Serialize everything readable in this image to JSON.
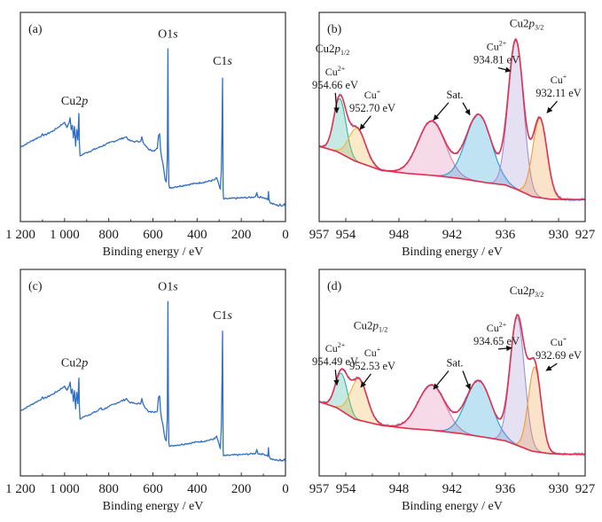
{
  "figure": {
    "colors": {
      "survey_line": "#2e6fc4",
      "envelope": "#e0304f",
      "background_line": "#e0304f",
      "raw_data": "#5b7fd6",
      "cu2_p12": "#2bb59a",
      "cu1_p12": "#f0b43c",
      "sat1": "#e07aa8",
      "sat2": "#1e9ad6",
      "cu2_p32": "#a38fd0",
      "cu1_p32": "#f09a3c",
      "axis": "#333333",
      "arrow": "#111111"
    }
  },
  "chart_data": [
    {
      "id": "a",
      "panel_label": "(a)",
      "type": "line",
      "title": "",
      "xlabel": "Binding energy / eV",
      "ylabel": "",
      "xlim": [
        1200,
        0
      ],
      "ylim": [
        0,
        100
      ],
      "x_reversed": true,
      "grid": false,
      "xticks": [
        1200,
        1000,
        800,
        600,
        400,
        200,
        0
      ],
      "xtick_labels": [
        "1 200",
        "1 000",
        "800",
        "600",
        "400",
        "200",
        "0"
      ],
      "minor_xticks": [
        1100,
        900,
        700,
        500,
        300,
        100
      ],
      "series": [
        {
          "name": "Survey",
          "x": [
            1200,
            1150,
            1105,
            1100,
            1095,
            1050,
            1005,
            1000,
            990,
            980,
            975,
            970,
            965,
            960,
            955,
            950,
            945,
            940,
            937,
            935,
            933,
            930,
            920,
            900,
            850,
            800,
            760,
            725,
            720,
            710,
            700,
            680,
            655,
            650,
            645,
            640,
            620,
            600,
            590,
            580,
            575,
            570,
            565,
            560,
            555,
            550,
            545,
            540,
            535,
            532,
            530,
            528,
            525,
            500,
            450,
            400,
            350,
            320,
            312,
            305,
            300,
            295,
            290,
            287,
            285,
            283,
            282,
            280,
            250,
            200,
            150,
            135,
            130,
            125,
            100,
            85,
            80,
            77,
            75,
            70,
            50,
            30,
            25,
            20,
            10,
            5,
            0
          ],
          "y": [
            35.6,
            38.5,
            41,
            42,
            41,
            43.5,
            47,
            47.5,
            45,
            47,
            49.6,
            44,
            46,
            40,
            45.5,
            36,
            44,
            39,
            47,
            51.7,
            38,
            31.4,
            32,
            33,
            35.2,
            37.5,
            39,
            40.3,
            40.5,
            39,
            38.5,
            38.2,
            38.5,
            40.5,
            38,
            37,
            34.5,
            34,
            34.2,
            35,
            41,
            42,
            34,
            30,
            28,
            24,
            20,
            19,
            30,
            82.6,
            40,
            18,
            16,
            16.6,
            17.5,
            18.3,
            19.2,
            20,
            21,
            19,
            17,
            15.5,
            25,
            48,
            68.6,
            30,
            14,
            10.8,
            11,
            11.3,
            11.6,
            12,
            13.8,
            11.8,
            11.5,
            10.9,
            10.3,
            14.4,
            11,
            9,
            8.2,
            7.5,
            8.4,
            7.4,
            7.8,
            8.5,
            6.5
          ]
        }
      ],
      "annotations": [
        {
          "text_main": "Cu2",
          "text_italic": "p",
          "x": 955,
          "y": 56
        },
        {
          "text_main": "O1",
          "text_italic": "s",
          "x": 532,
          "y": 88
        },
        {
          "text_main": "C1",
          "text_italic": "s",
          "x": 285,
          "y": 75
        }
      ]
    },
    {
      "id": "b",
      "panel_label": "(b)",
      "type": "area",
      "title": "",
      "xlabel": "Binding energy / eV",
      "ylabel": "",
      "xlim": [
        957,
        927
      ],
      "ylim": [
        0,
        100
      ],
      "x_reversed": true,
      "grid": false,
      "xticks": [
        957,
        954,
        948,
        942,
        936,
        930,
        927
      ],
      "xtick_labels": [
        "957",
        "954",
        "948",
        "942",
        "936",
        "930",
        "927"
      ],
      "minor_xticks": [
        951,
        945,
        939,
        933
      ],
      "background": {
        "x": [
          957,
          955,
          953,
          950,
          947,
          944,
          941,
          938,
          936,
          934.5,
          933,
          931,
          929,
          927
        ],
        "y": [
          36,
          33.5,
          29,
          24.5,
          23,
          22,
          20.5,
          18.5,
          17.5,
          15,
          12,
          10.7,
          10.5,
          10.5
        ]
      },
      "components": [
        {
          "name": "Cu2+ 2p1/2",
          "center": 954.66,
          "height": 26,
          "fwhm": 1.6,
          "color_key": "cu2_p12"
        },
        {
          "name": "Cu+ 2p1/2",
          "center": 952.7,
          "height": 16,
          "fwhm": 2.2,
          "color_key": "cu1_p12"
        },
        {
          "name": "Sat. 1",
          "center": 944.3,
          "height": 26,
          "fwhm": 3.6,
          "color_key": "sat1"
        },
        {
          "name": "Sat. 2",
          "center": 939.0,
          "height": 32,
          "fwhm": 3.4,
          "color_key": "sat2"
        },
        {
          "name": "Cu2+ 2p3/2",
          "center": 934.81,
          "height": 71,
          "fwhm": 2.0,
          "color_key": "cu2_p32"
        },
        {
          "name": "Cu+ 2p3/2",
          "center": 932.11,
          "height": 38,
          "fwhm": 1.9,
          "color_key": "cu1_p32"
        }
      ],
      "annotations": [
        {
          "kind": "group",
          "main": "Cu2",
          "italic": "p",
          "sub": "1/2",
          "x": 955.5,
          "y": 81
        },
        {
          "kind": "peak",
          "ion": "Cu",
          "charge": "2+",
          "energy": "954.66 eV",
          "x": 955.2,
          "y": 70,
          "arrow_to": [
            955.0,
            52
          ]
        },
        {
          "kind": "peak",
          "ion": "Cu",
          "charge": "+",
          "energy": "952.70 eV",
          "x": 951.0,
          "y": 59,
          "arrow_to": [
            952.4,
            44
          ]
        },
        {
          "kind": "label",
          "text": "Sat.",
          "x": 941.7,
          "y": 59,
          "arrows_to": [
            [
              944.1,
              48.5
            ],
            [
              940.0,
              51
            ]
          ]
        },
        {
          "kind": "peak",
          "ion": "Cu",
          "charge": "2+",
          "energy": "934.81 eV",
          "x": 937.0,
          "y": 82,
          "arrow_to": [
            935.4,
            72
          ]
        },
        {
          "kind": "group",
          "main": "Cu2",
          "italic": "p",
          "sub": "3/2",
          "x": 933.6,
          "y": 93
        },
        {
          "kind": "peak",
          "ion": "Cu",
          "charge": "+",
          "energy": "932.11 eV",
          "x": 930.0,
          "y": 66,
          "arrow_to": [
            931.3,
            52
          ]
        }
      ]
    },
    {
      "id": "c",
      "panel_label": "(c)",
      "type": "line",
      "title": "",
      "xlabel": "Binding energy / eV",
      "ylabel": "",
      "xlim": [
        1200,
        0
      ],
      "ylim": [
        0,
        100
      ],
      "x_reversed": true,
      "grid": false,
      "xticks": [
        1200,
        1000,
        800,
        600,
        400,
        200,
        0
      ],
      "xtick_labels": [
        "1 200",
        "1 000",
        "800",
        "600",
        "400",
        "200",
        "0"
      ],
      "minor_xticks": [
        1100,
        900,
        700,
        500,
        300,
        100
      ],
      "series": [
        {
          "name": "Survey",
          "x": [
            1200,
            1150,
            1105,
            1100,
            1095,
            1050,
            1005,
            1000,
            990,
            980,
            975,
            970,
            965,
            960,
            955,
            950,
            945,
            940,
            937,
            935,
            933,
            930,
            920,
            900,
            850,
            835,
            830,
            800,
            760,
            725,
            720,
            710,
            700,
            680,
            655,
            650,
            645,
            640,
            620,
            600,
            590,
            580,
            575,
            570,
            565,
            560,
            555,
            550,
            545,
            540,
            535,
            532,
            530,
            528,
            525,
            500,
            450,
            400,
            350,
            320,
            312,
            305,
            300,
            295,
            290,
            287,
            285,
            283,
            282,
            280,
            250,
            200,
            150,
            135,
            130,
            125,
            100,
            85,
            80,
            77,
            75,
            70,
            50,
            30,
            25,
            20,
            10,
            5,
            0
          ],
          "y": [
            31.5,
            34.5,
            37.3,
            38.3,
            37.3,
            39.8,
            43,
            43.5,
            41.5,
            43.2,
            45.5,
            40,
            42,
            36,
            41.3,
            32.5,
            40.5,
            35,
            43,
            47.4,
            34,
            27.5,
            28.3,
            29.2,
            31.5,
            33,
            32,
            33.5,
            35.5,
            37,
            37.5,
            36,
            35.5,
            35,
            35,
            37.5,
            35,
            34,
            31,
            31,
            31.2,
            31.5,
            38,
            38.8,
            31,
            27,
            25,
            21,
            18,
            17,
            28,
            84.5,
            40,
            16,
            14.3,
            14.8,
            15.6,
            16.4,
            17.2,
            18,
            19.3,
            17,
            15,
            13.2,
            24,
            49,
            70.1,
            30,
            12,
            9.7,
            10,
            10.3,
            10.7,
            11,
            12.8,
            10.8,
            10.5,
            10,
            9.4,
            13.7,
            10.1,
            8.5,
            7.8,
            7.4,
            8.1,
            7.2,
            7.6,
            8.2,
            6.2
          ]
        }
      ],
      "annotations": [
        {
          "text_main": "Cu2",
          "text_italic": "p",
          "x": 955,
          "y": 53
        },
        {
          "text_main": "O1",
          "text_italic": "s",
          "x": 532,
          "y": 90
        },
        {
          "text_main": "C1",
          "text_italic": "s",
          "x": 285,
          "y": 76
        }
      ]
    },
    {
      "id": "d",
      "panel_label": "(d)",
      "type": "area",
      "title": "",
      "xlabel": "Binding energy / eV",
      "ylabel": "",
      "xlim": [
        957,
        927
      ],
      "ylim": [
        0,
        100
      ],
      "x_reversed": true,
      "grid": false,
      "xticks": [
        957,
        954,
        948,
        942,
        936,
        930,
        927
      ],
      "xtick_labels": [
        "957",
        "954",
        "948",
        "942",
        "936",
        "930",
        "927"
      ],
      "minor_xticks": [
        951,
        945,
        939,
        933
      ],
      "background": {
        "x": [
          957,
          955,
          953,
          950,
          947,
          944,
          941,
          938,
          936,
          934.5,
          933,
          931,
          929,
          927
        ],
        "y": [
          36,
          33,
          27.5,
          24.5,
          23,
          22,
          20.5,
          18.5,
          17,
          14.5,
          12,
          10.8,
          10.5,
          10.5
        ]
      },
      "components": [
        {
          "name": "Cu2+ 2p1/2",
          "center": 954.49,
          "height": 18,
          "fwhm": 1.6,
          "color_key": "cu2_p12"
        },
        {
          "name": "Cu+ 2p1/2",
          "center": 952.53,
          "height": 20,
          "fwhm": 2.2,
          "color_key": "cu1_p12"
        },
        {
          "name": "Sat. 1",
          "center": 944.3,
          "height": 22,
          "fwhm": 3.6,
          "color_key": "sat1"
        },
        {
          "name": "Sat. 2",
          "center": 939.0,
          "height": 27,
          "fwhm": 3.4,
          "color_key": "sat2"
        },
        {
          "name": "Cu2+ 2p3/2",
          "center": 934.65,
          "height": 62,
          "fwhm": 1.9,
          "color_key": "cu2_p32"
        },
        {
          "name": "Cu+ 2p3/2",
          "center": 932.69,
          "height": 41,
          "fwhm": 1.7,
          "color_key": "cu1_p32"
        }
      ],
      "annotations": [
        {
          "kind": "group",
          "main": "Cu2",
          "italic": "p",
          "sub": "1/2",
          "x": 951.2,
          "y": 71
        },
        {
          "kind": "peak",
          "ion": "Cu",
          "charge": "2+",
          "energy": "954.49 eV",
          "x": 955.2,
          "y": 60,
          "arrow_to": [
            955.0,
            44
          ]
        },
        {
          "kind": "peak",
          "ion": "Cu",
          "charge": "+",
          "energy": "952.53 eV",
          "x": 951.0,
          "y": 58,
          "arrow_to": [
            952.3,
            43
          ]
        },
        {
          "kind": "label",
          "text": "Sat.",
          "x": 941.7,
          "y": 53,
          "arrows_to": [
            [
              944.1,
              42
            ],
            [
              940.0,
              42
            ]
          ]
        },
        {
          "kind": "peak",
          "ion": "Cu",
          "charge": "2+",
          "energy": "934.65 eV",
          "x": 937.0,
          "y": 70,
          "arrow_to": [
            935.3,
            62
          ]
        },
        {
          "kind": "group",
          "main": "Cu2",
          "italic": "p",
          "sub": "3/2",
          "x": 933.6,
          "y": 88
        },
        {
          "kind": "peak",
          "ion": "Cu",
          "charge": "+",
          "energy": "932.69 eV",
          "x": 930.0,
          "y": 63,
          "arrow_to": [
            931.4,
            51
          ]
        }
      ]
    }
  ]
}
